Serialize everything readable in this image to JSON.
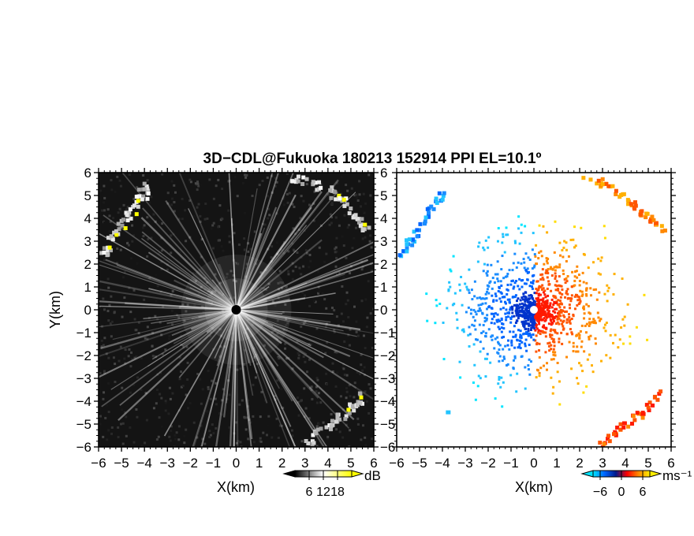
{
  "title": "3D−CDL@Fukuoka 180213 152914 PPI EL=10.1º",
  "chart_data": [
    {
      "type": "heatmap",
      "panel": "reflectivity",
      "xlabel": "X(km)",
      "ylabel": "Y(km)",
      "xlim": [
        -6,
        6
      ],
      "ylim": [
        -6,
        6
      ],
      "xticks": [
        "−6",
        "−5",
        "−4",
        "−3",
        "−2",
        "−1",
        "0",
        "1",
        "2",
        "3",
        "4",
        "5",
        "6"
      ],
      "yticks": [
        "−6",
        "−5",
        "−4",
        "−3",
        "−2",
        "−1",
        "0",
        "1",
        "2",
        "3",
        "4",
        "5",
        "6"
      ],
      "colorbar": {
        "unit": "dB",
        "ticks": [
          "6",
          "12",
          "18"
        ],
        "range": [
          0,
          24
        ],
        "colors": [
          "#000000",
          "#ffffff",
          "#ffff00"
        ]
      },
      "background_color": "#141414",
      "features": [
        {
          "label": "radar center",
          "x": 0,
          "y": 0
        },
        {
          "label": "NW echo band",
          "x": [
            -6,
            -3.8
          ],
          "y": [
            2.3,
            5.6
          ]
        },
        {
          "label": "N echo band",
          "x": [
            2.2,
            6
          ],
          "y": [
            3.3,
            6
          ]
        },
        {
          "label": "SE echo band",
          "x": [
            2.9,
            5.6
          ],
          "y": [
            -5.8,
            -3.4
          ]
        }
      ]
    },
    {
      "type": "heatmap",
      "panel": "doppler velocity",
      "xlabel": "X(km)",
      "ylabel": "",
      "xlim": [
        -6,
        6
      ],
      "ylim": [
        -6,
        6
      ],
      "xticks": [
        "−6",
        "−5",
        "−4",
        "−3",
        "−2",
        "−1",
        "0",
        "1",
        "2",
        "3",
        "4",
        "5",
        "6"
      ],
      "yticks": [
        "−6",
        "−5",
        "−4",
        "−3",
        "−2",
        "−1",
        "0",
        "1",
        "2",
        "3",
        "4",
        "5",
        "6"
      ],
      "colorbar": {
        "unit": "ms⁻¹",
        "ticks": [
          "−6",
          "0",
          "6"
        ],
        "range": [
          -8,
          8
        ],
        "colors": [
          "#00e5ff",
          "#0066ff",
          "#001a8c",
          "#ff0000",
          "#ff8800",
          "#ffee00"
        ]
      },
      "features": [
        {
          "label": "approaching (west side)",
          "x": [
            -6,
            0
          ],
          "y": [
            -2,
            5
          ]
        },
        {
          "label": "receding (east side)",
          "x": [
            0,
            6
          ],
          "y": [
            -5.9,
            6
          ]
        }
      ]
    }
  ]
}
